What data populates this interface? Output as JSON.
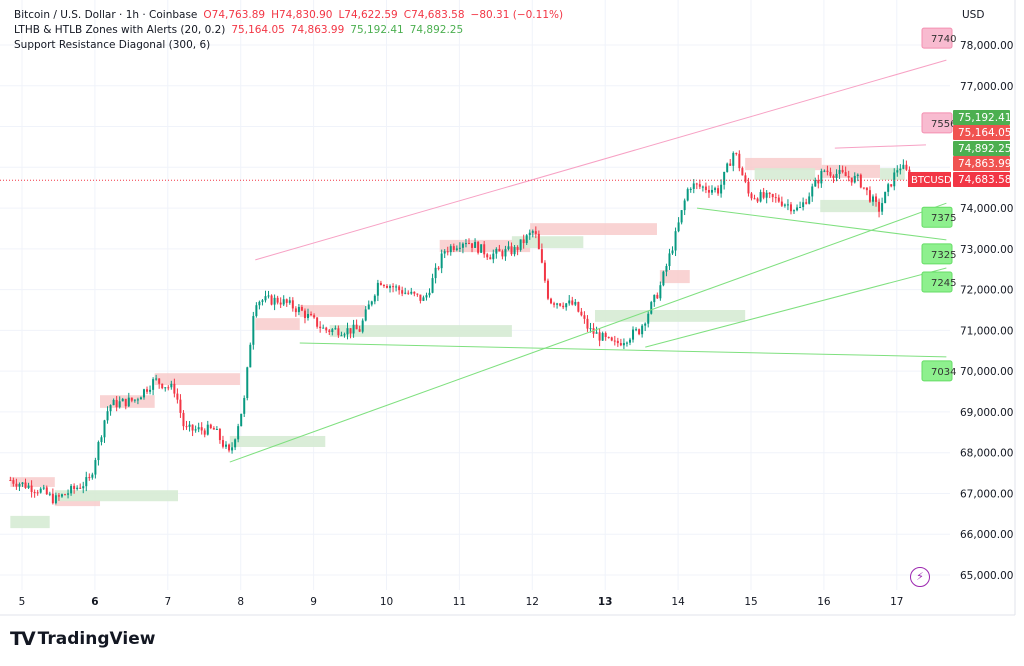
{
  "header": {
    "symbol": "Bitcoin / U.S. Dollar · 1h · Coinbase",
    "open": "O74,763.89",
    "high": "H74,830.90",
    "low": "L74,622.59",
    "close": "C74,683.58",
    "change": "−80.31 (−0.11%)",
    "indicator1": "LTHB & HTLB Zones with Alerts (20, 0.2)",
    "ind1_values": [
      "75,164.05",
      "74,863.99",
      "75,192.41",
      "74,892.25"
    ],
    "indicator2": "Support Resistance Diagonal (300, 6)",
    "currency": "USD"
  },
  "brand": "TradingView",
  "colors": {
    "up": "#089981",
    "down": "#f23645",
    "resistance_zone": "#f8c8c8",
    "support_zone": "#d6ebd4",
    "diag_resistance": "#f7a1c4",
    "diag_support": "#7fe07f"
  },
  "chart_data": {
    "type": "candlestick",
    "timeframe": "1h",
    "x_ticks": [
      "5",
      "6",
      "7",
      "8",
      "9",
      "10",
      "11",
      "12",
      "13",
      "14",
      "15",
      "16",
      "17"
    ],
    "y_ticks": [
      "78,000.00",
      "77,000.00",
      "74,000.00",
      "73,000.00",
      "72,000.00",
      "71,000.00",
      "70,000.00",
      "69,000.00",
      "68,000.00",
      "67,000.00",
      "66,000.00",
      "65,000.00"
    ],
    "y_range": [
      64600,
      78800
    ],
    "x_range": [
      4.7,
      18.2
    ],
    "grid": true,
    "price_path": [
      [
        4.84,
        67330
      ],
      [
        5.25,
        67080
      ],
      [
        5.45,
        66840
      ],
      [
        5.93,
        67330
      ],
      [
        6.13,
        68800
      ],
      [
        6.2,
        69170
      ],
      [
        6.54,
        69290
      ],
      [
        6.82,
        69780
      ],
      [
        7.1,
        69540
      ],
      [
        7.23,
        68560
      ],
      [
        7.64,
        68560
      ],
      [
        7.85,
        67940
      ],
      [
        8.05,
        69290
      ],
      [
        8.19,
        71740
      ],
      [
        8.53,
        71740
      ],
      [
        8.81,
        71500
      ],
      [
        9.15,
        71010
      ],
      [
        9.63,
        71010
      ],
      [
        9.9,
        72240
      ],
      [
        10.18,
        71990
      ],
      [
        10.52,
        71740
      ],
      [
        10.8,
        72970
      ],
      [
        11.08,
        73220
      ],
      [
        11.42,
        72850
      ],
      [
        11.76,
        72970
      ],
      [
        12.03,
        73460
      ],
      [
        12.23,
        71740
      ],
      [
        12.58,
        71620
      ],
      [
        12.78,
        71010
      ],
      [
        13.12,
        70640
      ],
      [
        13.47,
        71010
      ],
      [
        13.74,
        71990
      ],
      [
        13.95,
        73220
      ],
      [
        14.15,
        74570
      ],
      [
        14.56,
        74440
      ],
      [
        14.77,
        75420
      ],
      [
        14.97,
        74320
      ],
      [
        15.38,
        74200
      ],
      [
        15.66,
        73950
      ],
      [
        16.0,
        74930
      ],
      [
        16.48,
        74690
      ],
      [
        16.75,
        73950
      ],
      [
        17.03,
        75060
      ],
      [
        17.24,
        74683.58
      ]
    ],
    "resistance_zones": [
      [
        4.84,
        5.45,
        67160,
        67400
      ],
      [
        5.45,
        6.07,
        66690,
        66840
      ],
      [
        6.07,
        6.82,
        69100,
        69410
      ],
      [
        6.82,
        7.99,
        69660,
        69950
      ],
      [
        8.2,
        8.81,
        71010,
        71300
      ],
      [
        8.81,
        9.71,
        71330,
        71620
      ],
      [
        10.73,
        11.97,
        72920,
        73220
      ],
      [
        11.97,
        13.71,
        73340,
        73630
      ],
      [
        13.75,
        14.16,
        72160,
        72480
      ],
      [
        14.92,
        15.97,
        74930,
        75230
      ],
      [
        15.97,
        16.77,
        74740,
        75060
      ]
    ],
    "support_zones": [
      [
        4.84,
        5.38,
        66150,
        66450
      ],
      [
        5.45,
        7.14,
        66810,
        67080
      ],
      [
        7.85,
        9.16,
        68140,
        68410
      ],
      [
        9.22,
        11.72,
        70840,
        71130
      ],
      [
        11.72,
        12.7,
        73020,
        73310
      ],
      [
        12.86,
        14.92,
        71210,
        71500
      ],
      [
        15.05,
        15.88,
        74690,
        74980
      ],
      [
        15.95,
        16.77,
        73900,
        74200
      ],
      [
        16.77,
        17.11,
        74690,
        74980
      ]
    ],
    "diagonals": [
      {
        "kind": "resistance",
        "from": [
          8.2,
          72730
        ],
        "to": [
          17.68,
          77630
        ],
        "label": "7740"
      },
      {
        "kind": "resistance",
        "from": [
          16.15,
          75470
        ],
        "to": [
          17.4,
          75550
        ],
        "label": "7556"
      },
      {
        "kind": "support",
        "from": [
          7.85,
          67770
        ],
        "to": [
          17.68,
          74120
        ],
        "label": "7375"
      },
      {
        "kind": "support",
        "from": [
          14.26,
          74000
        ],
        "to": [
          17.68,
          73220
        ],
        "label": "7325"
      },
      {
        "kind": "support",
        "from": [
          13.55,
          70590
        ],
        "to": [
          17.68,
          72530
        ],
        "label": "7245"
      },
      {
        "kind": "support",
        "from": [
          8.81,
          70690
        ],
        "to": [
          17.68,
          70350
        ],
        "label": "7034"
      }
    ],
    "price_labels": [
      {
        "text": "75,192.41",
        "price": 75192.41,
        "color": "#4caf50"
      },
      {
        "text": "75,164.05",
        "price": 75164.05,
        "color": "#f05350"
      },
      {
        "text": "74,892.25",
        "price": 74892.25,
        "color": "#4caf50"
      },
      {
        "text": "74,863.99",
        "price": 74863.99,
        "color": "#f05350"
      },
      {
        "text": "74,683.58",
        "price": 74683.58,
        "color": "#f23645",
        "symbol": "BTCUSD"
      }
    ],
    "last_price": 74683.58
  }
}
